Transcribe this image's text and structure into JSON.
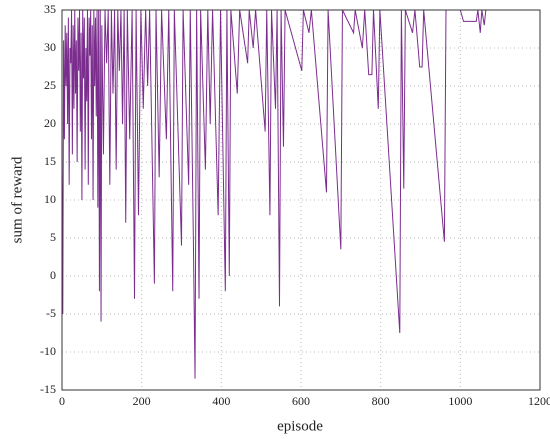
{
  "chart_data": {
    "type": "line",
    "x_label": "episode",
    "y_label": "sum of reward",
    "xlim": [
      0,
      1200
    ],
    "xticks": [
      0,
      200,
      400,
      600,
      800,
      1000,
      1200
    ],
    "ylim": [
      -15,
      35
    ],
    "yticks": [
      -15,
      -10,
      -5,
      0,
      5,
      10,
      15,
      20,
      25,
      30,
      35
    ],
    "grid": true,
    "series": [
      {
        "color": "#7b2d8e",
        "x": [
          0,
          2,
          4,
          6,
          8,
          10,
          12,
          14,
          16,
          18,
          20,
          22,
          24,
          26,
          28,
          30,
          32,
          34,
          36,
          38,
          40,
          42,
          44,
          46,
          48,
          50,
          52,
          54,
          56,
          58,
          60,
          62,
          64,
          66,
          68,
          70,
          72,
          74,
          76,
          78,
          80,
          82,
          84,
          86,
          88,
          90,
          92,
          94,
          96,
          98,
          100,
          104,
          108,
          112,
          116,
          120,
          124,
          128,
          132,
          136,
          140,
          144,
          148,
          152,
          156,
          160,
          164,
          170,
          176,
          182,
          186,
          192,
          198,
          204,
          210,
          215,
          220,
          232,
          236,
          244,
          250,
          262,
          268,
          278,
          282,
          300,
          304,
          318,
          322,
          330,
          334,
          338,
          344,
          348,
          360,
          366,
          372,
          378,
          392,
          398,
          410,
          414,
          420,
          424,
          440,
          446,
          466,
          470,
          480,
          486,
          510,
          514,
          522,
          526,
          536,
          540,
          546,
          550,
          556,
          560,
          602,
          606,
          620,
          626,
          664,
          668,
          700,
          704,
          732,
          736,
          754,
          760,
          770,
          778,
          782,
          794,
          798,
          848,
          852,
          858,
          862,
          880,
          886,
          898,
          904,
          908,
          960,
          964,
          1000,
          1008,
          1040,
          1044,
          1050,
          1054,
          1060,
          1064,
          1200
        ],
        "values": [
          15,
          -5,
          31,
          18,
          33,
          25,
          32,
          20,
          34,
          12,
          30,
          28,
          35,
          16,
          33,
          22,
          35,
          24,
          31,
          15,
          34,
          27,
          35,
          19,
          32,
          10,
          35,
          26,
          34,
          14,
          30,
          23,
          35,
          12,
          34,
          29,
          35,
          18,
          33,
          10,
          35,
          25,
          34,
          21,
          35,
          9,
          35,
          -2,
          35,
          -6,
          33,
          16,
          35,
          28,
          35,
          12,
          35,
          24,
          35,
          14,
          35,
          27,
          35,
          20,
          35,
          7,
          35,
          18,
          35,
          -3,
          35,
          8,
          35,
          22,
          35,
          25,
          35,
          -1,
          35,
          13,
          35,
          18,
          35,
          -2,
          35,
          4,
          35,
          12,
          35,
          4,
          -13.5,
          35,
          -3,
          35,
          14,
          35,
          20,
          35,
          8,
          35,
          -2,
          35,
          0,
          35,
          24,
          35,
          28,
          35,
          30,
          35,
          19,
          35,
          8,
          35,
          22,
          35,
          -4,
          35,
          17,
          35,
          27,
          35,
          32,
          35,
          11,
          35,
          3.5,
          35,
          32,
          35,
          30,
          35,
          26.5,
          26.5,
          35,
          22,
          35,
          -7.5,
          35,
          11.5,
          35,
          32,
          35,
          27.5,
          27.5,
          35,
          4.5,
          35,
          35,
          33.5,
          33.5,
          35,
          32,
          35,
          33,
          35,
          35
        ]
      }
    ]
  }
}
